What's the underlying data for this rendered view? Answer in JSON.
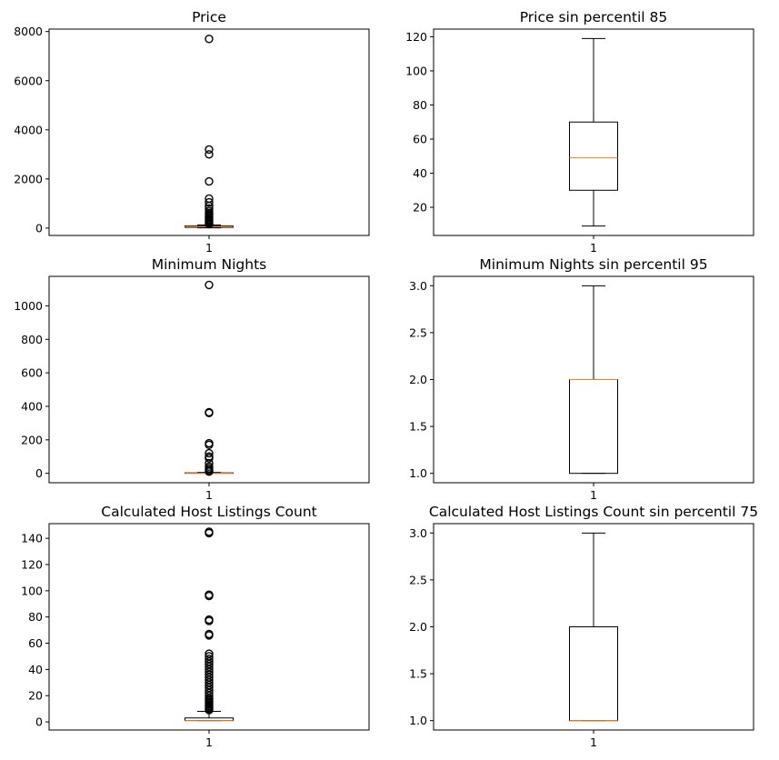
{
  "chart_data": [
    {
      "type": "boxplot",
      "title": "Price",
      "xticks": [
        "1"
      ],
      "ylim": [
        -300,
        8100
      ],
      "yticks": [
        0,
        2000,
        4000,
        6000,
        8000
      ],
      "box": {
        "q1": 30,
        "median": 50,
        "q3": 82,
        "whisker_low": 9,
        "whisker_high": 125
      },
      "outliers": [
        7700,
        3200,
        3000,
        1900,
        1200,
        1050,
        900,
        800,
        700,
        620,
        560,
        500,
        450,
        400,
        350,
        300,
        250,
        200,
        160
      ]
    },
    {
      "type": "boxplot",
      "title": "Price sin percentil 85",
      "xticks": [
        "1"
      ],
      "ylim": [
        3.5,
        124.5
      ],
      "yticks": [
        20,
        40,
        60,
        80,
        100,
        120
      ],
      "box": {
        "q1": 30,
        "median": 49,
        "q3": 70,
        "whisker_low": 9,
        "whisker_high": 119
      },
      "outliers": []
    },
    {
      "type": "boxplot",
      "title": "Minimum Nights",
      "xticks": [
        "1"
      ],
      "ylim": [
        -56,
        1176
      ],
      "yticks": [
        0,
        200,
        400,
        600,
        800,
        1000
      ],
      "box": {
        "q1": 1,
        "median": 2,
        "q3": 3,
        "whisker_low": 1,
        "whisker_high": 6
      },
      "outliers": [
        1125,
        365,
        360,
        180,
        170,
        120,
        100,
        90,
        60,
        40,
        30,
        20,
        15,
        10
      ]
    },
    {
      "type": "boxplot",
      "title": "Minimum Nights sin percentil 95",
      "xticks": [
        "1"
      ],
      "ylim": [
        0.9,
        3.1
      ],
      "yticks": [
        1.0,
        1.5,
        2.0,
        2.5,
        3.0
      ],
      "box": {
        "q1": 1.0,
        "median": 2.0,
        "q3": 2.0,
        "whisker_low": 1.0,
        "whisker_high": 3.0
      },
      "outliers": []
    },
    {
      "type": "boxplot",
      "title": "Calculated Host Listings Count",
      "xticks": [
        "1"
      ],
      "ylim": [
        -6.2,
        151.2
      ],
      "yticks": [
        0,
        20,
        40,
        60,
        80,
        100,
        120,
        140
      ],
      "box": {
        "q1": 1,
        "median": 1,
        "q3": 3,
        "whisker_low": 1,
        "whisker_high": 8
      },
      "outliers": [
        145,
        144,
        97,
        96,
        78,
        77,
        67,
        66,
        52,
        50,
        48,
        46,
        44,
        42,
        40,
        38,
        36,
        34,
        32,
        30,
        28,
        26,
        24,
        22,
        20,
        18,
        17,
        16,
        15,
        14,
        13,
        12,
        11,
        10,
        9
      ]
    },
    {
      "type": "boxplot",
      "title": "Calculated Host Listings Count sin percentil 75",
      "xticks": [
        "1"
      ],
      "ylim": [
        0.9,
        3.1
      ],
      "yticks": [
        1.0,
        1.5,
        2.0,
        2.5,
        3.0
      ],
      "box": {
        "q1": 1.0,
        "median": 1.0,
        "q3": 2.0,
        "whisker_low": 1.0,
        "whisker_high": 3.0
      },
      "outliers": []
    }
  ],
  "colors": {
    "box": "#000000",
    "median": "#ff7f0e",
    "background": "#ffffff"
  }
}
